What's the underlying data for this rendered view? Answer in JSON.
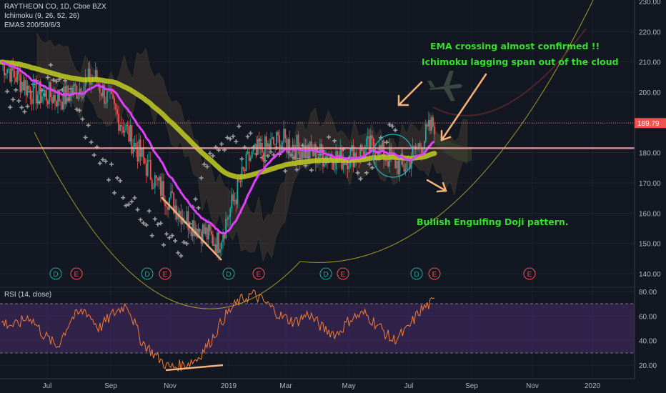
{
  "legend": {
    "symbol": "RAYTHEON CO, 1D, Cboe BZX",
    "ichimoku": "Ichimoku (9, 26, 52, 26)",
    "emas": "EMAS 200/50/6/3",
    "rsi": "RSI (14, close)"
  },
  "annotations": {
    "ema_cross": "EMA crossing almost confirmed !!",
    "lagging_span": "Ichimoku lagging span out of the cloud",
    "engulfing": "Bullish Engulfing Doji pattern."
  },
  "colors": {
    "background": "#131722",
    "candle_up": "#26a69a",
    "candle_down": "#ef5350",
    "ema_fast": "#e040fb",
    "ema_slow": "#b9c322",
    "annotation_text": "#35e02a",
    "arrow": "#f5b37a",
    "rsi_line": "#f57c32",
    "rsi_band": "#4a2c6b",
    "price_line": "#f06d6d",
    "support_line": "#f5a0a0"
  },
  "icons": [
    "airplane-icon"
  ],
  "chart_data": [
    {
      "type": "candlestick",
      "title": "RAYTHEON CO, 1D, Cboe BZX",
      "ylim": [
        136,
        230
      ],
      "y_ticks": [
        140,
        150,
        160,
        170,
        180,
        190,
        200,
        210,
        220,
        230
      ],
      "x_ticks": [
        "Jul",
        "Sep",
        "Nov",
        "2019",
        "Mar",
        "May",
        "Jul",
        "Sep",
        "Nov",
        "2020"
      ],
      "last_price_label": "189.79",
      "last_price": 189.79,
      "support_level": 181.5,
      "grid": true,
      "approx_close_path": [
        [
          "Jun 2018",
          210
        ],
        [
          "Jul 2018",
          200
        ],
        [
          "Aug 2018",
          198
        ],
        [
          "Sep 2018",
          205
        ],
        [
          "Oct 2018",
          188
        ],
        [
          "Nov 2018",
          170
        ],
        [
          "Dec 2018",
          158
        ],
        [
          "Jan 2019",
          150
        ],
        [
          "Feb 2019",
          178
        ],
        [
          "Mar 2019",
          184
        ],
        [
          "Apr 2019",
          180
        ],
        [
          "May 2019",
          178
        ],
        [
          "Jun 2019",
          182
        ],
        [
          "Jul 2019",
          175
        ],
        [
          "Aug 2019",
          189.79
        ]
      ],
      "events": [
        {
          "label": "D",
          "kind": "dividend"
        },
        {
          "label": "E",
          "kind": "earnings"
        },
        {
          "label": "D",
          "kind": "dividend"
        },
        {
          "label": "E",
          "kind": "earnings"
        },
        {
          "label": "D",
          "kind": "dividend"
        },
        {
          "label": "E",
          "kind": "earnings"
        },
        {
          "label": "D",
          "kind": "dividend"
        },
        {
          "label": "E",
          "kind": "earnings"
        },
        {
          "label": "D",
          "kind": "dividend"
        },
        {
          "label": "E",
          "kind": "earnings"
        },
        {
          "label": "E",
          "kind": "earnings"
        }
      ]
    },
    {
      "type": "line",
      "title": "RSI (14, close)",
      "ylim": [
        13,
        84
      ],
      "y_ticks": [
        20,
        40,
        60,
        80
      ],
      "bands": [
        30,
        70
      ],
      "approx_values": [
        55,
        52,
        60,
        45,
        35,
        58,
        65,
        50,
        62,
        70,
        40,
        28,
        18,
        20,
        25,
        40,
        60,
        72,
        78,
        70,
        60,
        55,
        62,
        50,
        45,
        58,
        62,
        52,
        40,
        48,
        65,
        72
      ]
    }
  ]
}
